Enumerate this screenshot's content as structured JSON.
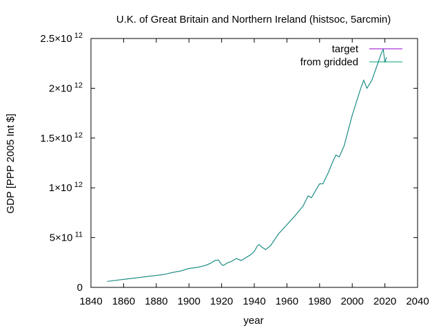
{
  "chart_data": {
    "type": "line",
    "title": "U.K. of Great Britain and Northern Ireland (histsoc, 5arcmin)",
    "xlabel": "year",
    "ylabel": "GDP [PPP 2005 Int $]",
    "xlim": [
      1840,
      2040
    ],
    "ylim": [
      0,
      2500000000000
    ],
    "grid": false,
    "legend_position": "top-right",
    "x_ticks": [
      "1840",
      "1860",
      "1880",
      "1900",
      "1920",
      "1940",
      "1960",
      "1980",
      "2000",
      "2020",
      "2040"
    ],
    "y_ticks": [
      {
        "value": 0,
        "mantissa": "0",
        "exponent": ""
      },
      {
        "value": 500000000000,
        "mantissa": "5×10",
        "exponent": "11"
      },
      {
        "value": 1000000000000,
        "mantissa": "1×10",
        "exponent": "12"
      },
      {
        "value": 1500000000000,
        "mantissa": "1.5×10",
        "exponent": "12"
      },
      {
        "value": 2000000000000,
        "mantissa": "2×10",
        "exponent": "12"
      },
      {
        "value": 2500000000000,
        "mantissa": "2.5×10",
        "exponent": "12"
      }
    ],
    "series": [
      {
        "name": "target",
        "color": "#9400d3",
        "x": [
          1850,
          1860,
          1870,
          1880,
          1885,
          1890,
          1895,
          1900,
          1905,
          1910,
          1913,
          1916,
          1918,
          1920,
          1921,
          1924,
          1926,
          1929,
          1932,
          1935,
          1938,
          1940,
          1942,
          1943,
          1945,
          1947,
          1950,
          1955,
          1960,
          1965,
          1970,
          1973,
          1975,
          1980,
          1982,
          1985,
          1988,
          1990,
          1992,
          1995,
          2000,
          2005,
          2007,
          2009,
          2012,
          2015,
          2018,
          2019,
          2020,
          2021
        ],
        "y": [
          60000000000.0,
          80000000000.0,
          100000000000.0,
          120000000000.0,
          130000000000.0,
          150000000000.0,
          165000000000.0,
          190000000000.0,
          200000000000.0,
          220000000000.0,
          240000000000.0,
          270000000000.0,
          275000000000.0,
          230000000000.0,
          220000000000.0,
          250000000000.0,
          260000000000.0,
          290000000000.0,
          270000000000.0,
          300000000000.0,
          330000000000.0,
          360000000000.0,
          420000000000.0,
          430000000000.0,
          400000000000.0,
          380000000000.0,
          420000000000.0,
          540000000000.0,
          630000000000.0,
          720000000000.0,
          820000000000.0,
          920000000000.0,
          900000000000.0,
          1040000000000.0,
          1040000000000.0,
          1140000000000.0,
          1260000000000.0,
          1330000000000.0,
          1310000000000.0,
          1420000000000.0,
          1730000000000.0,
          1990000000000.0,
          2080000000000.0,
          2000000000000.0,
          2080000000000.0,
          2220000000000.0,
          2360000000000.0,
          2390000000000.0,
          2260000000000.0,
          2310000000000.0
        ]
      },
      {
        "name": "from gridded",
        "color": "#009e73",
        "x": [
          1850,
          1860,
          1870,
          1880,
          1885,
          1890,
          1895,
          1900,
          1905,
          1910,
          1913,
          1916,
          1918,
          1920,
          1921,
          1924,
          1926,
          1929,
          1932,
          1935,
          1938,
          1940,
          1942,
          1943,
          1945,
          1947,
          1950,
          1955,
          1960,
          1965,
          1970,
          1973,
          1975,
          1980,
          1982,
          1985,
          1988,
          1990,
          1992,
          1995,
          2000,
          2005,
          2007,
          2009,
          2012,
          2015,
          2018,
          2019,
          2020,
          2021
        ],
        "y": [
          60000000000.0,
          80000000000.0,
          100000000000.0,
          120000000000.0,
          130000000000.0,
          150000000000.0,
          165000000000.0,
          190000000000.0,
          200000000000.0,
          220000000000.0,
          240000000000.0,
          270000000000.0,
          275000000000.0,
          230000000000.0,
          220000000000.0,
          250000000000.0,
          260000000000.0,
          290000000000.0,
          270000000000.0,
          300000000000.0,
          330000000000.0,
          360000000000.0,
          420000000000.0,
          430000000000.0,
          400000000000.0,
          380000000000.0,
          420000000000.0,
          540000000000.0,
          630000000000.0,
          720000000000.0,
          820000000000.0,
          920000000000.0,
          900000000000.0,
          1040000000000.0,
          1040000000000.0,
          1140000000000.0,
          1260000000000.0,
          1330000000000.0,
          1310000000000.0,
          1420000000000.0,
          1730000000000.0,
          1990000000000.0,
          2080000000000.0,
          2000000000000.0,
          2080000000000.0,
          2220000000000.0,
          2360000000000.0,
          2390000000000.0,
          2260000000000.0,
          2310000000000.0
        ]
      }
    ]
  }
}
